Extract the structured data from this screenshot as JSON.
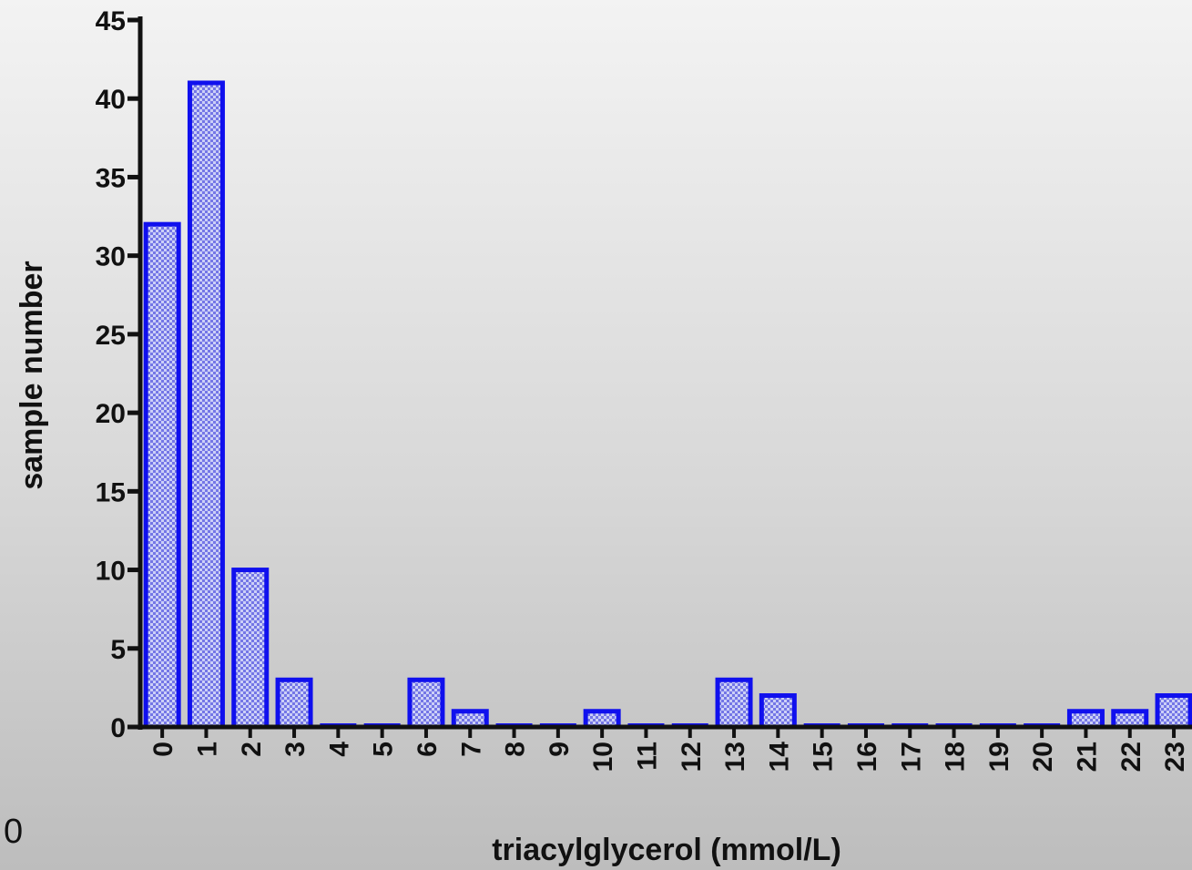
{
  "corner_label": "0",
  "chart_data": {
    "type": "bar",
    "xlabel": "triacylglycerol (mmol/L)",
    "ylabel": "sample number",
    "categories": [
      "0",
      "1",
      "2",
      "3",
      "4",
      "5",
      "6",
      "7",
      "8",
      "9",
      "10",
      "11",
      "12",
      "13",
      "14",
      "15",
      "16",
      "17",
      "18",
      "19",
      "20",
      "21",
      "22",
      "23"
    ],
    "values": [
      32,
      41,
      10,
      3,
      0,
      0,
      3,
      1,
      0,
      0,
      1,
      0,
      0,
      3,
      2,
      0,
      0,
      0,
      0,
      0,
      0,
      1,
      1,
      2
    ],
    "yticks": [
      0,
      5,
      10,
      15,
      20,
      25,
      30,
      35,
      40,
      45
    ],
    "ylim": [
      0,
      45
    ],
    "grid": false,
    "colors": {
      "bar_edge": "#1010ee",
      "bar_fill": "#c9cdf6",
      "bar_pattern": "#2b2bd8",
      "axis": "#111111"
    }
  }
}
